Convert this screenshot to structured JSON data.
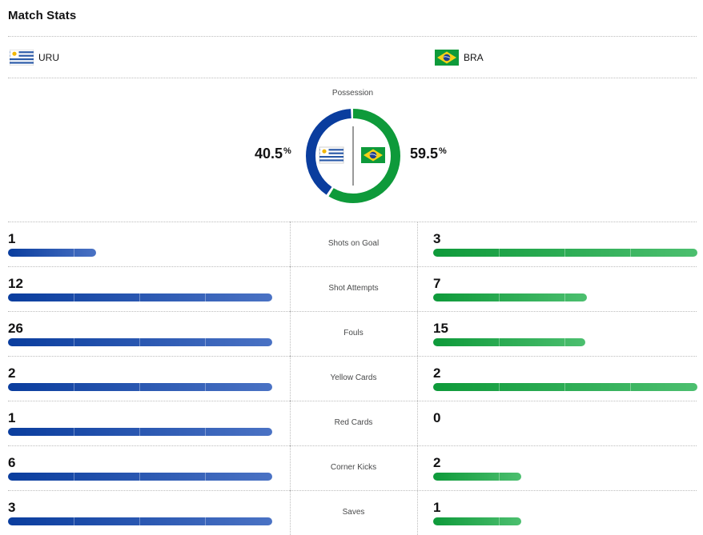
{
  "title": "Match Stats",
  "teams": {
    "home": {
      "abbr": "URU",
      "flag_icon": "uruguay-flag-icon",
      "color": "#0a3d9e"
    },
    "away": {
      "abbr": "BRA",
      "flag_icon": "brazil-flag-icon",
      "color": "#0e9a3a"
    }
  },
  "possession": {
    "label": "Possession",
    "home_value": "40.5",
    "away_value": "59.5",
    "unit": "%"
  },
  "stats": [
    {
      "label": "Shots on Goal",
      "home": "1",
      "away": "3",
      "home_fill": 0.333,
      "away_fill": 1.0
    },
    {
      "label": "Shot Attempts",
      "home": "12",
      "away": "7",
      "home_fill": 1.0,
      "away_fill": 0.583
    },
    {
      "label": "Fouls",
      "home": "26",
      "away": "15",
      "home_fill": 1.0,
      "away_fill": 0.577
    },
    {
      "label": "Yellow Cards",
      "home": "2",
      "away": "2",
      "home_fill": 1.0,
      "away_fill": 1.0
    },
    {
      "label": "Red Cards",
      "home": "1",
      "away": "0",
      "home_fill": 1.0,
      "away_fill": 0.0
    },
    {
      "label": "Corner Kicks",
      "home": "6",
      "away": "2",
      "home_fill": 1.0,
      "away_fill": 0.333
    },
    {
      "label": "Saves",
      "home": "3",
      "away": "1",
      "home_fill": 1.0,
      "away_fill": 0.333
    }
  ]
}
